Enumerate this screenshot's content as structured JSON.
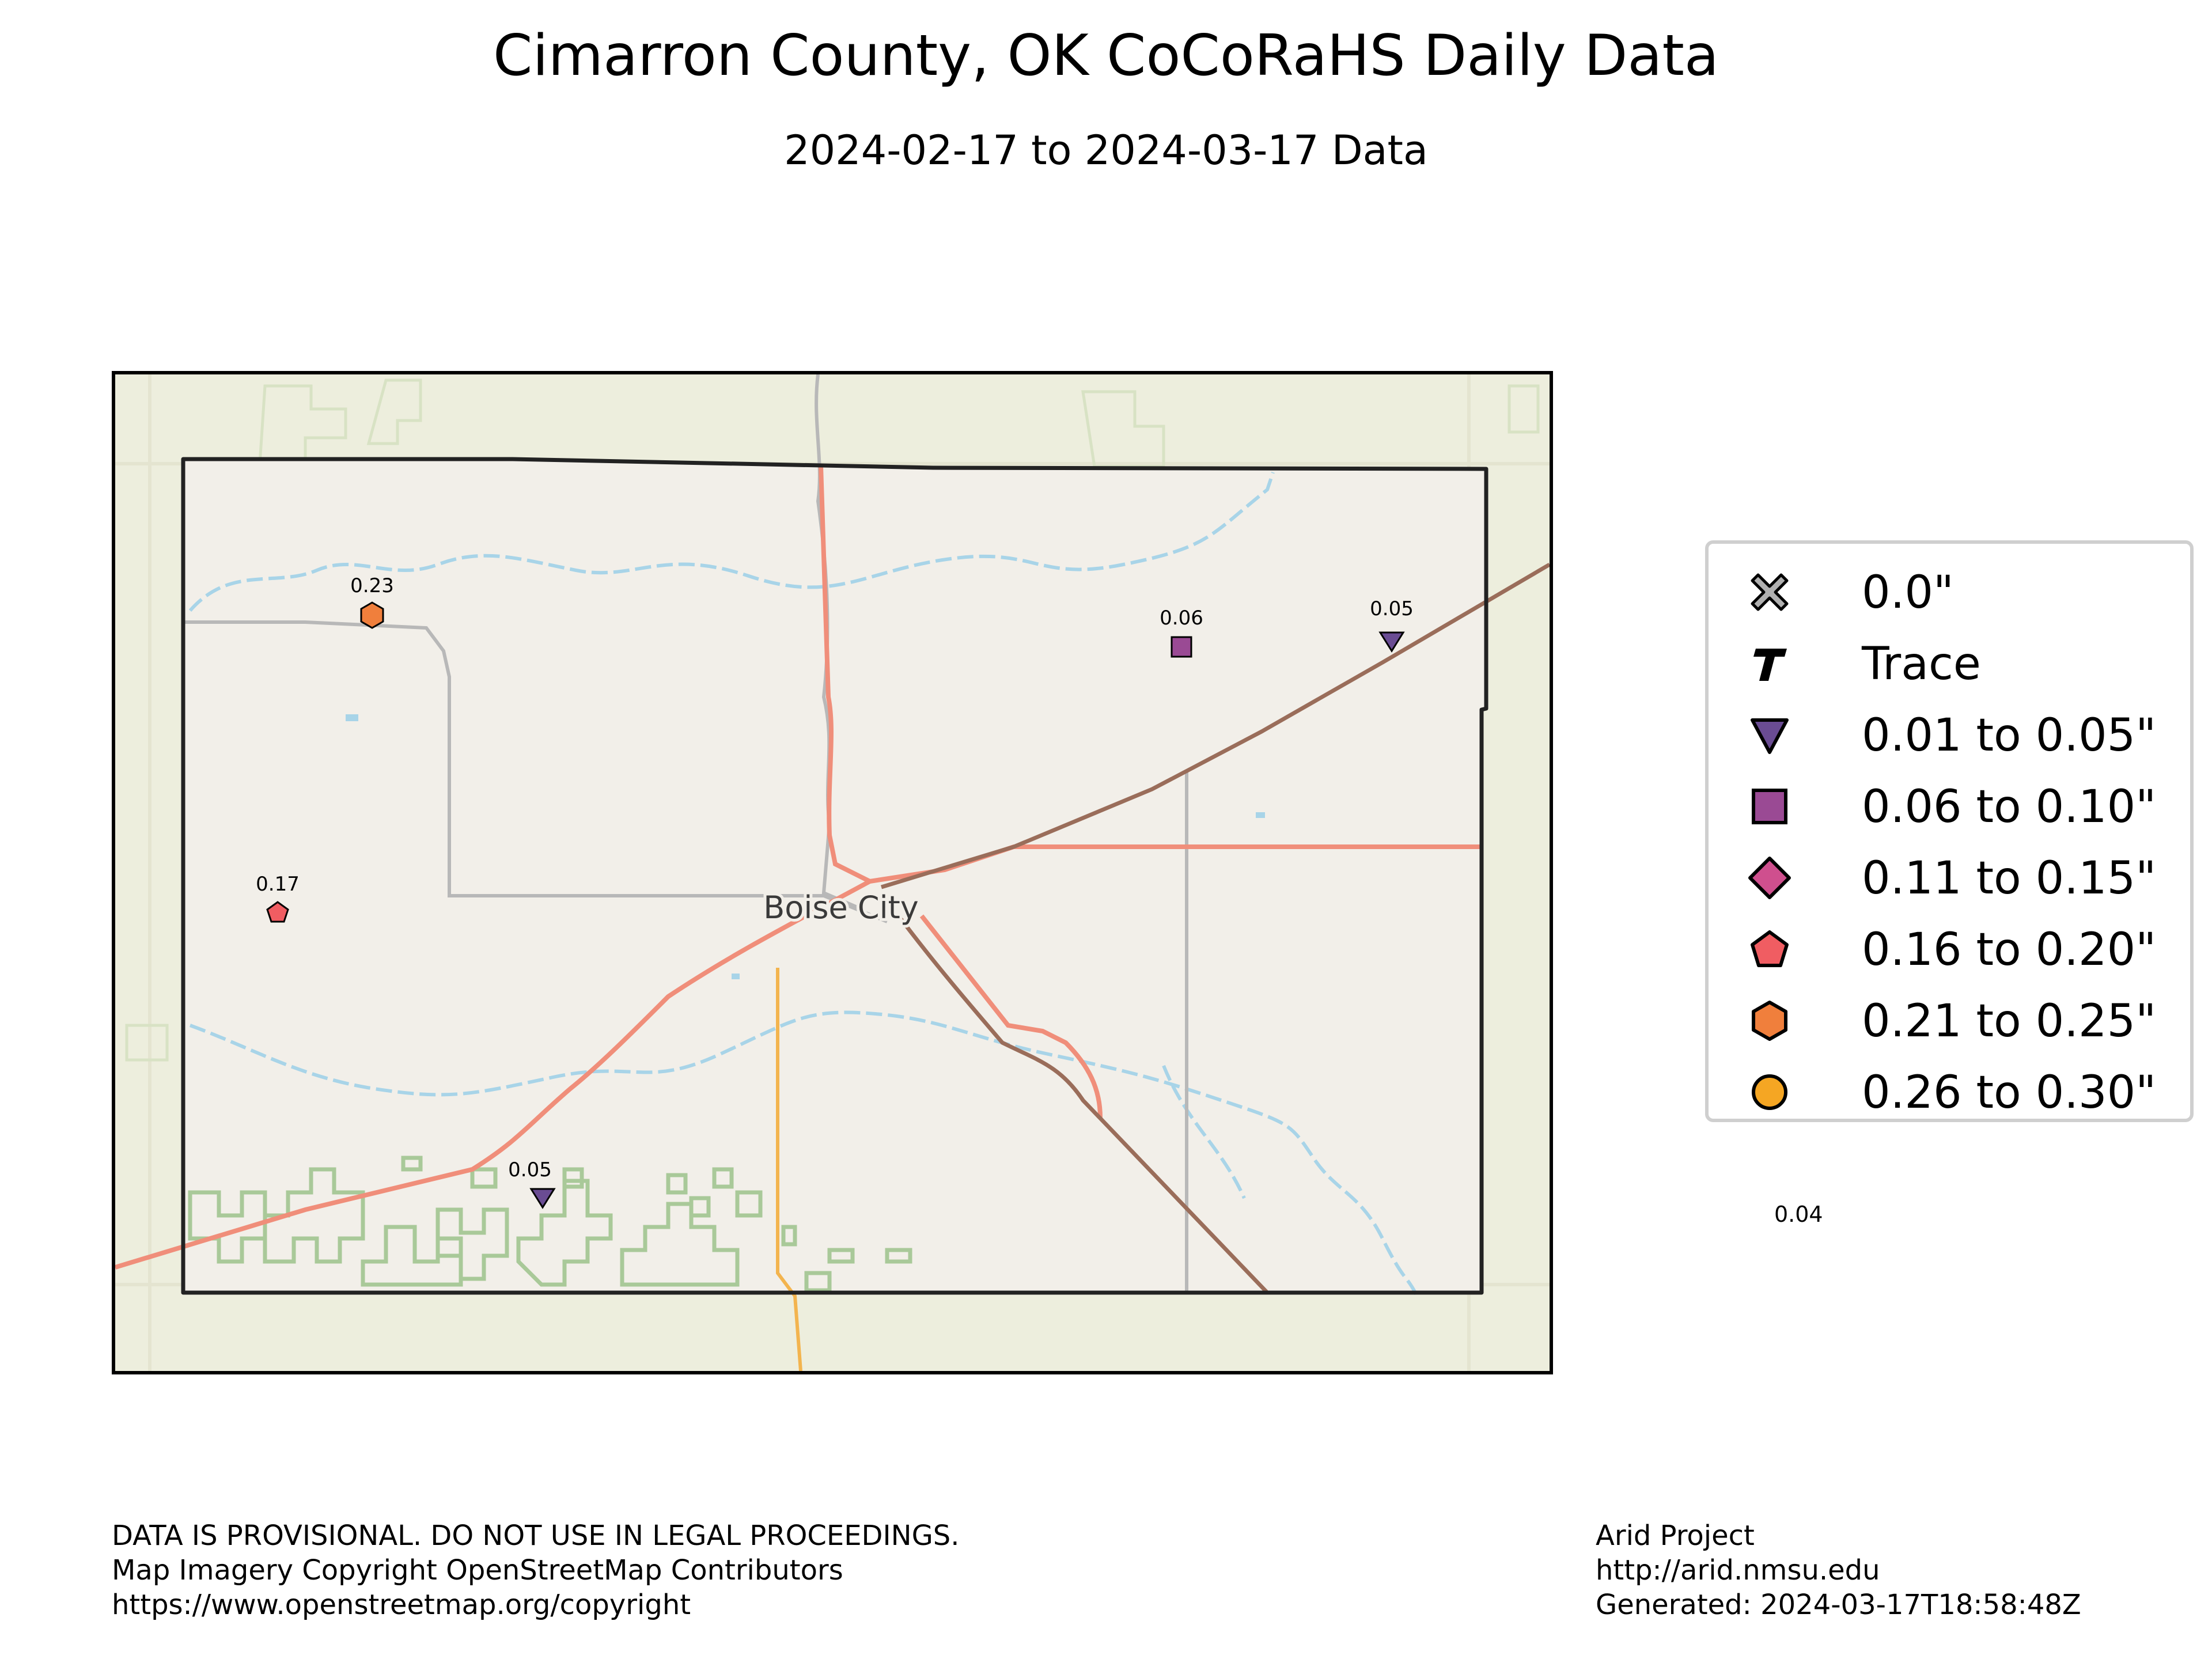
{
  "header": {
    "title": "Cimarron County, OK CoCoRaHS Daily Data",
    "subtitle": "2024-02-17 to 2024-03-17 Data"
  },
  "map": {
    "city_label": "Boise City",
    "stations": [
      {
        "value": "0.23",
        "symbol": "hexagon",
        "color": "#f07f3c"
      },
      {
        "value": "0.06",
        "symbol": "square",
        "color": "#9a4a94"
      },
      {
        "value": "0.05",
        "symbol": "triangle-down",
        "color": "#6a4c93"
      },
      {
        "value": "0.17",
        "symbol": "pentagon",
        "color": "#f05d62"
      },
      {
        "value": "0.05",
        "symbol": "triangle-down",
        "color": "#6a4c93"
      }
    ]
  },
  "legend": {
    "items": [
      {
        "label": "0.0\"",
        "symbol": "x-cross",
        "color": "#b0b0b0"
      },
      {
        "label": "Trace",
        "symbol": "T-glyph",
        "color": "#000000"
      },
      {
        "label": "0.01 to 0.05\"",
        "symbol": "triangle-down",
        "color": "#6a4c93"
      },
      {
        "label": "0.06 to 0.10\"",
        "symbol": "square",
        "color": "#9a4a94"
      },
      {
        "label": "0.11 to 0.15\"",
        "symbol": "diamond",
        "color": "#cf4f8e"
      },
      {
        "label": "0.16 to 0.20\"",
        "symbol": "pentagon",
        "color": "#f05d62"
      },
      {
        "label": "0.21 to 0.25\"",
        "symbol": "hexagon",
        "color": "#f07f3c"
      },
      {
        "label": "0.26 to 0.30\"",
        "symbol": "circle",
        "color": "#f5a623"
      }
    ]
  },
  "stray_value": "0.04",
  "footer": {
    "left_lines": [
      "DATA IS PROVISIONAL. DO NOT USE IN LEGAL PROCEEDINGS.",
      "Map Imagery Copyright OpenStreetMap Contributors",
      "https://www.openstreetmap.org/copyright"
    ],
    "right_lines": [
      "Arid Project",
      "http://arid.nmsu.edu",
      "Generated: 2024-03-17T18:58:48Z"
    ]
  }
}
